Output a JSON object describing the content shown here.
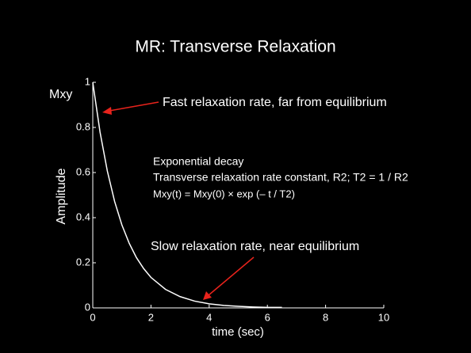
{
  "chart_data": {
    "type": "line",
    "title": "MR: Transverse Relaxation",
    "title_color": "#ffff33",
    "x_label": "time (sec)",
    "y_label": "Amplitude",
    "y_name": "Mxy",
    "x": [
      0,
      0.25,
      0.5,
      0.75,
      1,
      1.25,
      1.5,
      1.75,
      2,
      2.5,
      3,
      3.5,
      4,
      4.5,
      5,
      5.5,
      6,
      6.5
    ],
    "series": [
      {
        "name": "Mxy",
        "color": "#ffffff",
        "values": [
          1,
          0.779,
          0.607,
          0.472,
          0.368,
          0.287,
          0.223,
          0.174,
          0.135,
          0.082,
          0.05,
          0.03,
          0.018,
          0.011,
          0.007,
          0.004,
          0.002,
          0.002
        ]
      }
    ],
    "xlim": [
      0,
      10
    ],
    "ylim": [
      0,
      1
    ],
    "xticks": [
      0,
      2,
      4,
      6,
      8,
      10
    ],
    "yticks": [
      0,
      0.2,
      0.4,
      0.6,
      0.8,
      1
    ],
    "annotations": [
      {
        "text": "Fast  relaxation rate, far from equilibrium",
        "color": "#ffffff"
      },
      {
        "text": "Exponential decay",
        "color": "#ffff33"
      },
      {
        "text": "Transverse relaxation rate constant, R2; T2 = 1 / R2",
        "color": "#ffff33"
      },
      {
        "text": "Mxy(t) = Mxy(0) × exp (– t / T2)",
        "color": "#ffffff"
      },
      {
        "text": "Slow relaxation rate, near equilibrium",
        "color": "#ffffff"
      }
    ],
    "arrow_color": "#e8231c"
  }
}
